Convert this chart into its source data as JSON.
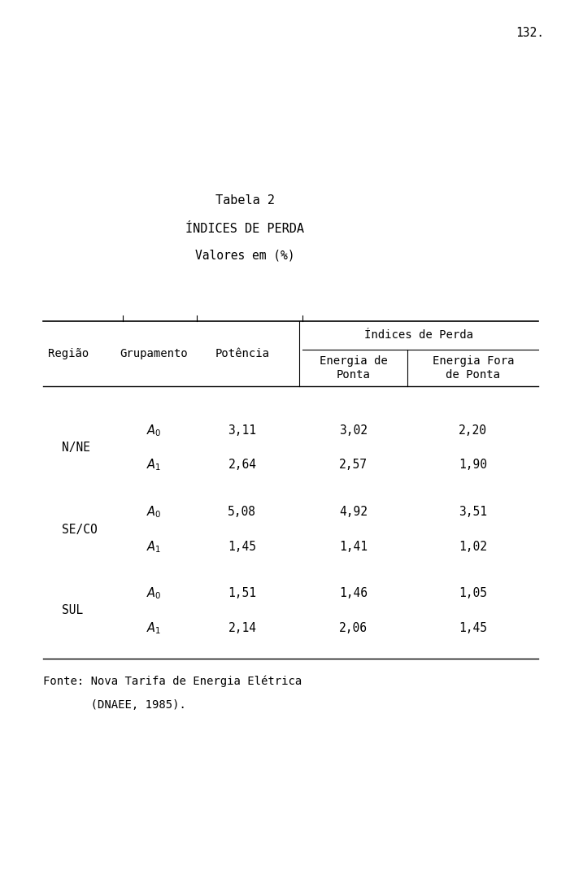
{
  "page_number": "132.",
  "title1": "Tabela 2",
  "title2": "ÍNDICES DE PERDA",
  "title3": "Valores em (%)",
  "header_span": "Índices de Perda",
  "col_headers": [
    "Região",
    "Grupamento",
    "Potência",
    "Energia de\nPonta",
    "Energia Fora\nde Ponta"
  ],
  "rows": [
    [
      "",
      "A_0",
      "3,11",
      "3,02",
      "2,20"
    ],
    [
      "N/NE",
      "A_1",
      "2,64",
      "2,57",
      "1,90"
    ],
    [
      "",
      "A_0",
      "5,08",
      "4,92",
      "3,51"
    ],
    [
      "SE/CO",
      "A_1",
      "1,45",
      "1,41",
      "1,02"
    ],
    [
      "",
      "A_0",
      "1,51",
      "1,46",
      "1,05"
    ],
    [
      "SUL",
      "A_1",
      "2,14",
      "2,06",
      "1,45"
    ]
  ],
  "footnote_line1": "Fonte: Nova Tarifa de Energia Elétrica",
  "footnote_line2": "       (DNAEE, 1985).",
  "bg_color": "#ffffff",
  "text_color": "#000000",
  "font_size": 10.5,
  "title_font_size": 11,
  "header_font_size": 10
}
